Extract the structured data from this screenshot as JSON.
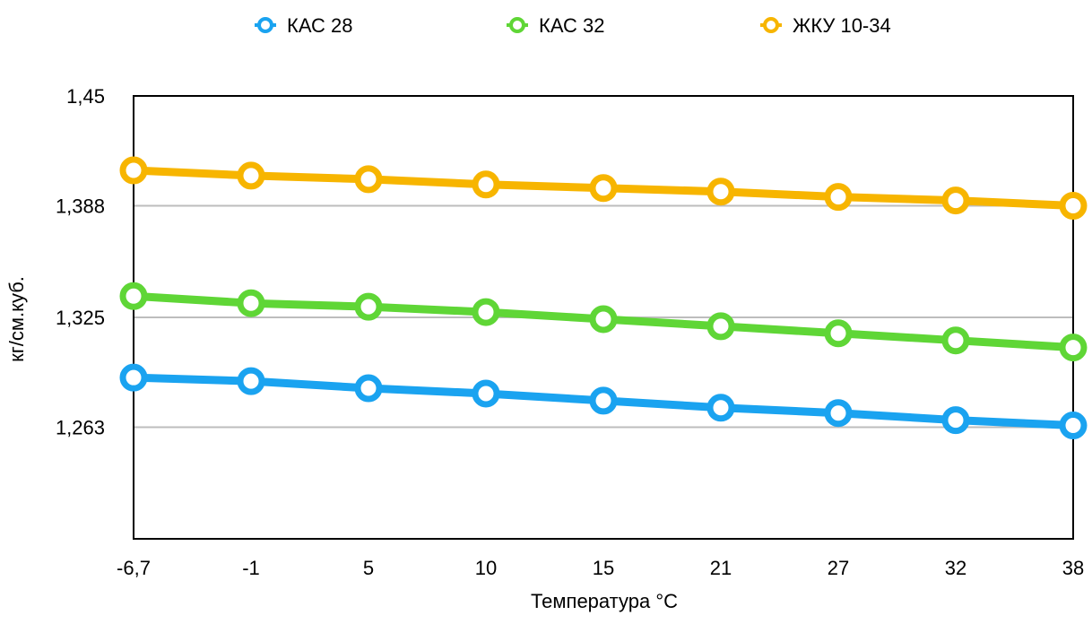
{
  "chart_data": {
    "type": "line",
    "title": "",
    "xlabel": "Температура  °C",
    "ylabel": "кг/см.куб.",
    "categories": [
      "-6,7",
      "-1",
      "5",
      "10",
      "15",
      "21",
      "27",
      "32",
      "38"
    ],
    "y_ticks": [
      "1,263",
      "1,325",
      "1,388",
      "1,45"
    ],
    "y_tick_values": [
      1.263,
      1.325,
      1.388,
      1.45
    ],
    "ylim": [
      1.2,
      1.45
    ],
    "grid": true,
    "legend_position": "top",
    "series": [
      {
        "name": "КАС 28",
        "color": "#1AA3F0",
        "values": [
          1.291,
          1.289,
          1.285,
          1.282,
          1.278,
          1.274,
          1.271,
          1.267,
          1.264
        ]
      },
      {
        "name": "КАС 32",
        "color": "#5FD636",
        "values": [
          1.337,
          1.333,
          1.331,
          1.328,
          1.324,
          1.32,
          1.316,
          1.312,
          1.308
        ]
      },
      {
        "name": "ЖКУ 10-34",
        "color": "#F7B500",
        "values": [
          1.408,
          1.405,
          1.403,
          1.4,
          1.398,
          1.396,
          1.393,
          1.391,
          1.388
        ]
      }
    ]
  }
}
